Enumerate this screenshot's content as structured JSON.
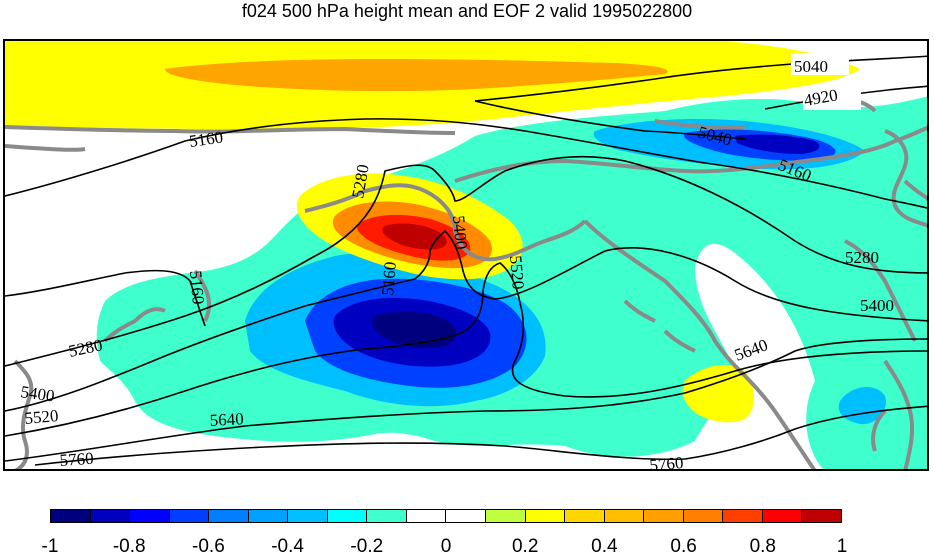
{
  "title": "f024 500 hPa height mean and EOF 2 valid 1995022800",
  "contour_labels": [
    "5040",
    "4920",
    "5160",
    "5040",
    "5160",
    "5280",
    "5400",
    "5520",
    "5160",
    "5280",
    "5400",
    "5160",
    "5280",
    "5400",
    "5520",
    "5640",
    "5640",
    "5760",
    "5760"
  ],
  "colorbar": {
    "ticks": [
      "-1",
      "-0.8",
      "-0.6",
      "-0.4",
      "-0.2",
      "0",
      "0.2",
      "0.4",
      "0.6",
      "0.8",
      "1"
    ],
    "colors": [
      "#00007f",
      "#0000bf",
      "#0000ff",
      "#003fff",
      "#007fff",
      "#00a0ff",
      "#00bfff",
      "#00ffff",
      "#3fffcc",
      "#ffffff",
      "#ffffff",
      "#bfff3f",
      "#ffff00",
      "#ffd700",
      "#ffbf00",
      "#ff9f00",
      "#ff7f00",
      "#ff3f00",
      "#ff0000",
      "#bf0000"
    ]
  },
  "colors": {
    "land": "#8a8a8a",
    "contour": "#000000",
    "cyan_fill": "#3fffcc",
    "yellow_fill": "#ffff00",
    "orange_fill": "#ffa500",
    "red_fill": "#ff0000",
    "blue_fill": "#0040ff",
    "navy_fill": "#0000b0"
  }
}
